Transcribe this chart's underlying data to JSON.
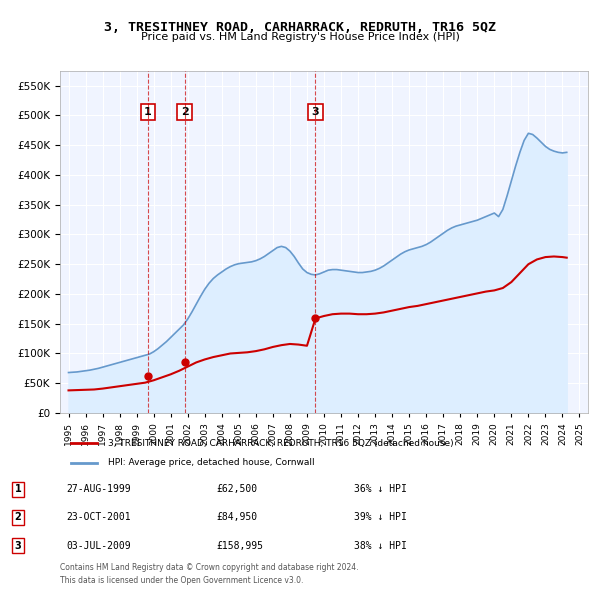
{
  "title": "3, TRESITHNEY ROAD, CARHARRACK, REDRUTH, TR16 5QZ",
  "subtitle": "Price paid vs. HM Land Registry's House Price Index (HPI)",
  "property_label": "3, TRESITHNEY ROAD, CARHARRACK, REDRUTH, TR16 5QZ (detached house)",
  "hpi_label": "HPI: Average price, detached house, Cornwall",
  "footnote1": "Contains HM Land Registry data © Crown copyright and database right 2024.",
  "footnote2": "This data is licensed under the Open Government Licence v3.0.",
  "transactions": [
    {
      "num": 1,
      "date": "27-AUG-1999",
      "price": 62500,
      "pct": "36%",
      "dir": "↓"
    },
    {
      "num": 2,
      "date": "23-OCT-2001",
      "price": 84950,
      "pct": "39%",
      "dir": "↓"
    },
    {
      "num": 3,
      "date": "03-JUL-2009",
      "price": 158995,
      "pct": "38%",
      "dir": "↓"
    }
  ],
  "transaction_dates_decimal": [
    1999.65,
    2001.81,
    2009.5
  ],
  "transaction_prices": [
    62500,
    84950,
    158995
  ],
  "vline_dates_decimal": [
    1999.65,
    2001.81,
    2009.5
  ],
  "ylim": [
    0,
    575000
  ],
  "yticks": [
    0,
    50000,
    100000,
    150000,
    200000,
    250000,
    300000,
    350000,
    400000,
    450000,
    500000,
    550000
  ],
  "xlim_start": 1994.5,
  "xlim_end": 2025.5,
  "property_line_color": "#cc0000",
  "hpi_line_color": "#6699cc",
  "hpi_fill_color": "#ddeeff",
  "background_color": "#f0f4ff",
  "plot_bg_color": "#f0f4ff",
  "grid_color": "#ffffff",
  "vline_color": "#cc0000",
  "marker_color": "#cc0000",
  "box_color": "#cc0000",
  "hpi_data_years": [
    1995,
    1995.25,
    1995.5,
    1995.75,
    1996,
    1996.25,
    1996.5,
    1996.75,
    1997,
    1997.25,
    1997.5,
    1997.75,
    1998,
    1998.25,
    1998.5,
    1998.75,
    1999,
    1999.25,
    1999.5,
    1999.75,
    2000,
    2000.25,
    2000.5,
    2000.75,
    2001,
    2001.25,
    2001.5,
    2001.75,
    2002,
    2002.25,
    2002.5,
    2002.75,
    2003,
    2003.25,
    2003.5,
    2003.75,
    2004,
    2004.25,
    2004.5,
    2004.75,
    2005,
    2005.25,
    2005.5,
    2005.75,
    2006,
    2006.25,
    2006.5,
    2006.75,
    2007,
    2007.25,
    2007.5,
    2007.75,
    2008,
    2008.25,
    2008.5,
    2008.75,
    2009,
    2009.25,
    2009.5,
    2009.75,
    2010,
    2010.25,
    2010.5,
    2010.75,
    2011,
    2011.25,
    2011.5,
    2011.75,
    2012,
    2012.25,
    2012.5,
    2012.75,
    2013,
    2013.25,
    2013.5,
    2013.75,
    2014,
    2014.25,
    2014.5,
    2014.75,
    2015,
    2015.25,
    2015.5,
    2015.75,
    2016,
    2016.25,
    2016.5,
    2016.75,
    2017,
    2017.25,
    2017.5,
    2017.75,
    2018,
    2018.25,
    2018.5,
    2018.75,
    2019,
    2019.25,
    2019.5,
    2019.75,
    2020,
    2020.25,
    2020.5,
    2020.75,
    2021,
    2021.25,
    2021.5,
    2021.75,
    2022,
    2022.25,
    2022.5,
    2022.75,
    2023,
    2023.25,
    2023.5,
    2023.75,
    2024,
    2024.25
  ],
  "hpi_data_values": [
    68000,
    68500,
    69000,
    70000,
    71000,
    72000,
    73500,
    75000,
    77000,
    79000,
    81000,
    83000,
    85000,
    87000,
    89000,
    91000,
    93000,
    95000,
    97000,
    99000,
    103000,
    108000,
    114000,
    120000,
    127000,
    134000,
    141000,
    148000,
    158000,
    170000,
    183000,
    196000,
    208000,
    218000,
    226000,
    232000,
    237000,
    242000,
    246000,
    249000,
    251000,
    252000,
    253000,
    254000,
    256000,
    259000,
    263000,
    268000,
    273000,
    278000,
    280000,
    278000,
    272000,
    263000,
    252000,
    242000,
    236000,
    233000,
    232000,
    234000,
    237000,
    240000,
    241000,
    241000,
    240000,
    239000,
    238000,
    237000,
    236000,
    236000,
    237000,
    238000,
    240000,
    243000,
    247000,
    252000,
    257000,
    262000,
    267000,
    271000,
    274000,
    276000,
    278000,
    280000,
    283000,
    287000,
    292000,
    297000,
    302000,
    307000,
    311000,
    314000,
    316000,
    318000,
    320000,
    322000,
    324000,
    327000,
    330000,
    333000,
    336000,
    330000,
    342000,
    365000,
    390000,
    415000,
    438000,
    458000,
    470000,
    468000,
    462000,
    455000,
    448000,
    443000,
    440000,
    438000,
    437000,
    438000
  ],
  "property_data_years": [
    1995,
    1995.5,
    1996,
    1996.5,
    1997,
    1997.5,
    1998,
    1998.5,
    1999,
    1999.5,
    2000,
    2000.5,
    2001,
    2001.5,
    2002,
    2002.5,
    2003,
    2003.5,
    2004,
    2004.5,
    2005,
    2005.5,
    2006,
    2006.5,
    2007,
    2007.5,
    2008,
    2008.5,
    2009,
    2009.5,
    2010,
    2010.5,
    2011,
    2011.5,
    2012,
    2012.5,
    2013,
    2013.5,
    2014,
    2014.5,
    2015,
    2015.5,
    2016,
    2016.5,
    2017,
    2017.5,
    2018,
    2018.5,
    2019,
    2019.5,
    2020,
    2020.5,
    2021,
    2021.5,
    2022,
    2022.5,
    2023,
    2023.5,
    2024,
    2024.25
  ],
  "property_data_values": [
    38000,
    38500,
    39000,
    39500,
    41000,
    43000,
    45000,
    47000,
    49000,
    51000,
    55000,
    60000,
    65000,
    71000,
    78000,
    85000,
    90000,
    94000,
    97000,
    100000,
    101000,
    102000,
    104000,
    107000,
    111000,
    114000,
    116000,
    115000,
    113000,
    158995,
    163000,
    166000,
    167000,
    167000,
    166000,
    166000,
    167000,
    169000,
    172000,
    175000,
    178000,
    180000,
    183000,
    186000,
    189000,
    192000,
    195000,
    198000,
    201000,
    204000,
    206000,
    210000,
    220000,
    235000,
    250000,
    258000,
    262000,
    263000,
    262000,
    261000
  ]
}
